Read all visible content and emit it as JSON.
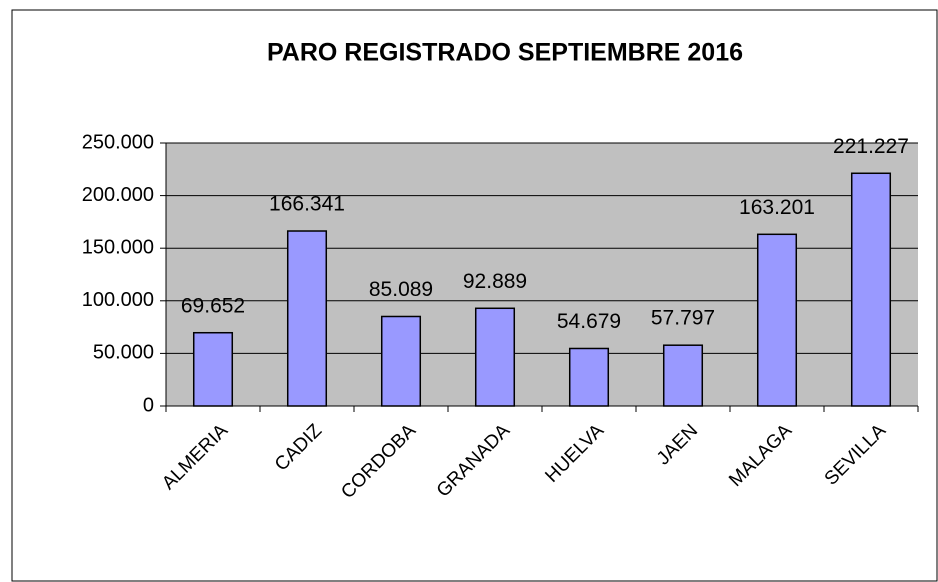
{
  "chart_data": {
    "type": "bar",
    "title": "PARO REGISTRADO SEPTIEMBRE 2016",
    "categories": [
      "ALMERIA",
      "CADIZ",
      "CORDOBA",
      "GRANADA",
      "HUELVA",
      "JAEN",
      "MALAGA",
      "SEVILLA"
    ],
    "values": [
      69652,
      166341,
      85089,
      92889,
      54679,
      57797,
      163201,
      221227
    ],
    "value_labels": [
      "69.652",
      "166.341",
      "85.089",
      "92.889",
      "54.679",
      "57.797",
      "163.201",
      "221.227"
    ],
    "color": "#9999ff",
    "ylim": [
      0,
      250000
    ],
    "yticks": [
      0,
      {
        "value": 50000,
        "label": "50.000"
      },
      {
        "value": 100000,
        "label": "100.000"
      },
      {
        "value": 150000,
        "label": "150.000"
      },
      {
        "value": 200000,
        "label": "200.000"
      },
      {
        "value": 250000,
        "label": "250.000"
      }
    ],
    "grid": true
  }
}
